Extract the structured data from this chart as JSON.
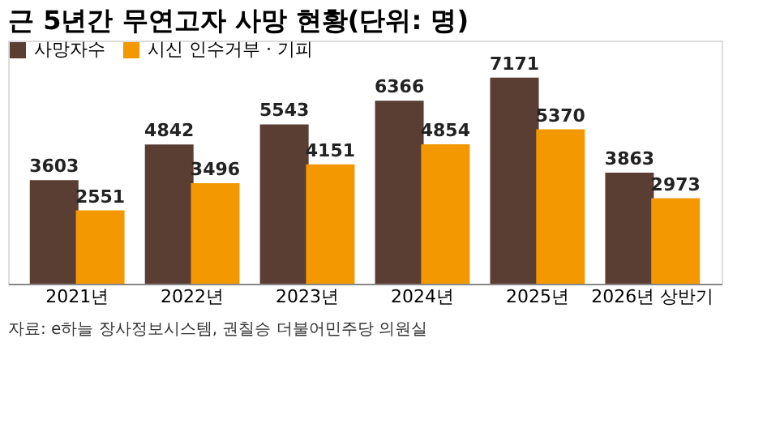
{
  "chart_data": {
    "type": "bar",
    "title": "근 5년간 무연고자 사망 현황(단위: 명)",
    "categories": [
      "2021년",
      "2022년",
      "2023년",
      "2024년",
      "2025년",
      "2026년 상반기"
    ],
    "series": [
      {
        "name": "사망자수",
        "color": "#5a3d33",
        "values": [
          3603,
          4842,
          5543,
          6366,
          7171,
          3863
        ]
      },
      {
        "name": "시신 인수거부 · 기피",
        "color": "#f39800",
        "values": [
          2551,
          3496,
          4151,
          4854,
          5370,
          2973
        ]
      }
    ],
    "data_labels": true,
    "legend": "top left",
    "grid": false,
    "annotations": [
      "자료: e하늘 장사정보시스템, 권칠승 더불어민주당 의원실"
    ]
  }
}
